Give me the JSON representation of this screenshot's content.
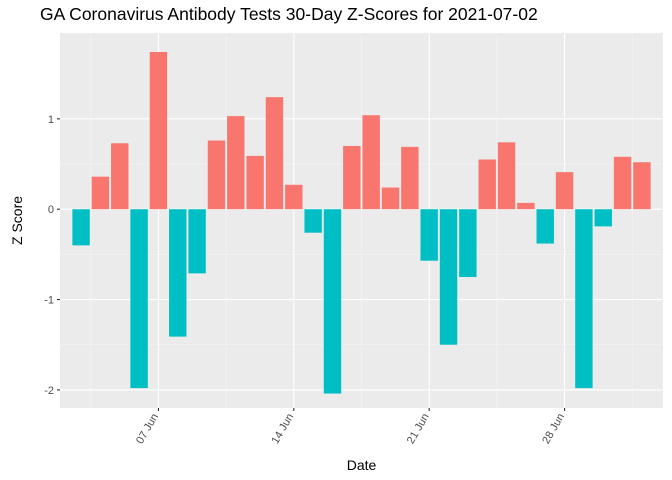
{
  "chart_data": {
    "type": "bar",
    "title": "GA Coronavirus Antibody Tests 30-Day Z-Scores for 2021-07-02",
    "xlabel": "Date",
    "ylabel": "Z Score",
    "ylim": [
      -2.2,
      1.95
    ],
    "grid": true,
    "x_ticks": [
      {
        "label": "07 Jun",
        "date": "2021-06-07"
      },
      {
        "label": "14 Jun",
        "date": "2021-06-14"
      },
      {
        "label": "21 Jun",
        "date": "2021-06-21"
      },
      {
        "label": "28 Jun",
        "date": "2021-06-28"
      }
    ],
    "y_ticks": [
      -2,
      -1,
      0,
      1
    ],
    "colors": {
      "positive": "#F8766D",
      "negative": "#00BFC4"
    },
    "categories": [
      "2021-06-03",
      "2021-06-04",
      "2021-06-05",
      "2021-06-06",
      "2021-06-07",
      "2021-06-08",
      "2021-06-09",
      "2021-06-10",
      "2021-06-11",
      "2021-06-12",
      "2021-06-13",
      "2021-06-14",
      "2021-06-15",
      "2021-06-16",
      "2021-06-17",
      "2021-06-18",
      "2021-06-19",
      "2021-06-20",
      "2021-06-21",
      "2021-06-22",
      "2021-06-23",
      "2021-06-24",
      "2021-06-25",
      "2021-06-26",
      "2021-06-27",
      "2021-06-28",
      "2021-06-29",
      "2021-06-30",
      "2021-07-01",
      "2021-07-02"
    ],
    "values": [
      -0.4,
      0.36,
      0.73,
      -1.98,
      1.74,
      -1.41,
      -0.71,
      0.76,
      1.03,
      0.59,
      1.24,
      0.27,
      -0.26,
      -2.04,
      0.7,
      1.04,
      0.24,
      0.69,
      -0.57,
      -1.5,
      -0.75,
      0.55,
      0.74,
      0.07,
      -0.38,
      0.41,
      -1.98,
      -0.19,
      0.58,
      0.52
    ]
  }
}
